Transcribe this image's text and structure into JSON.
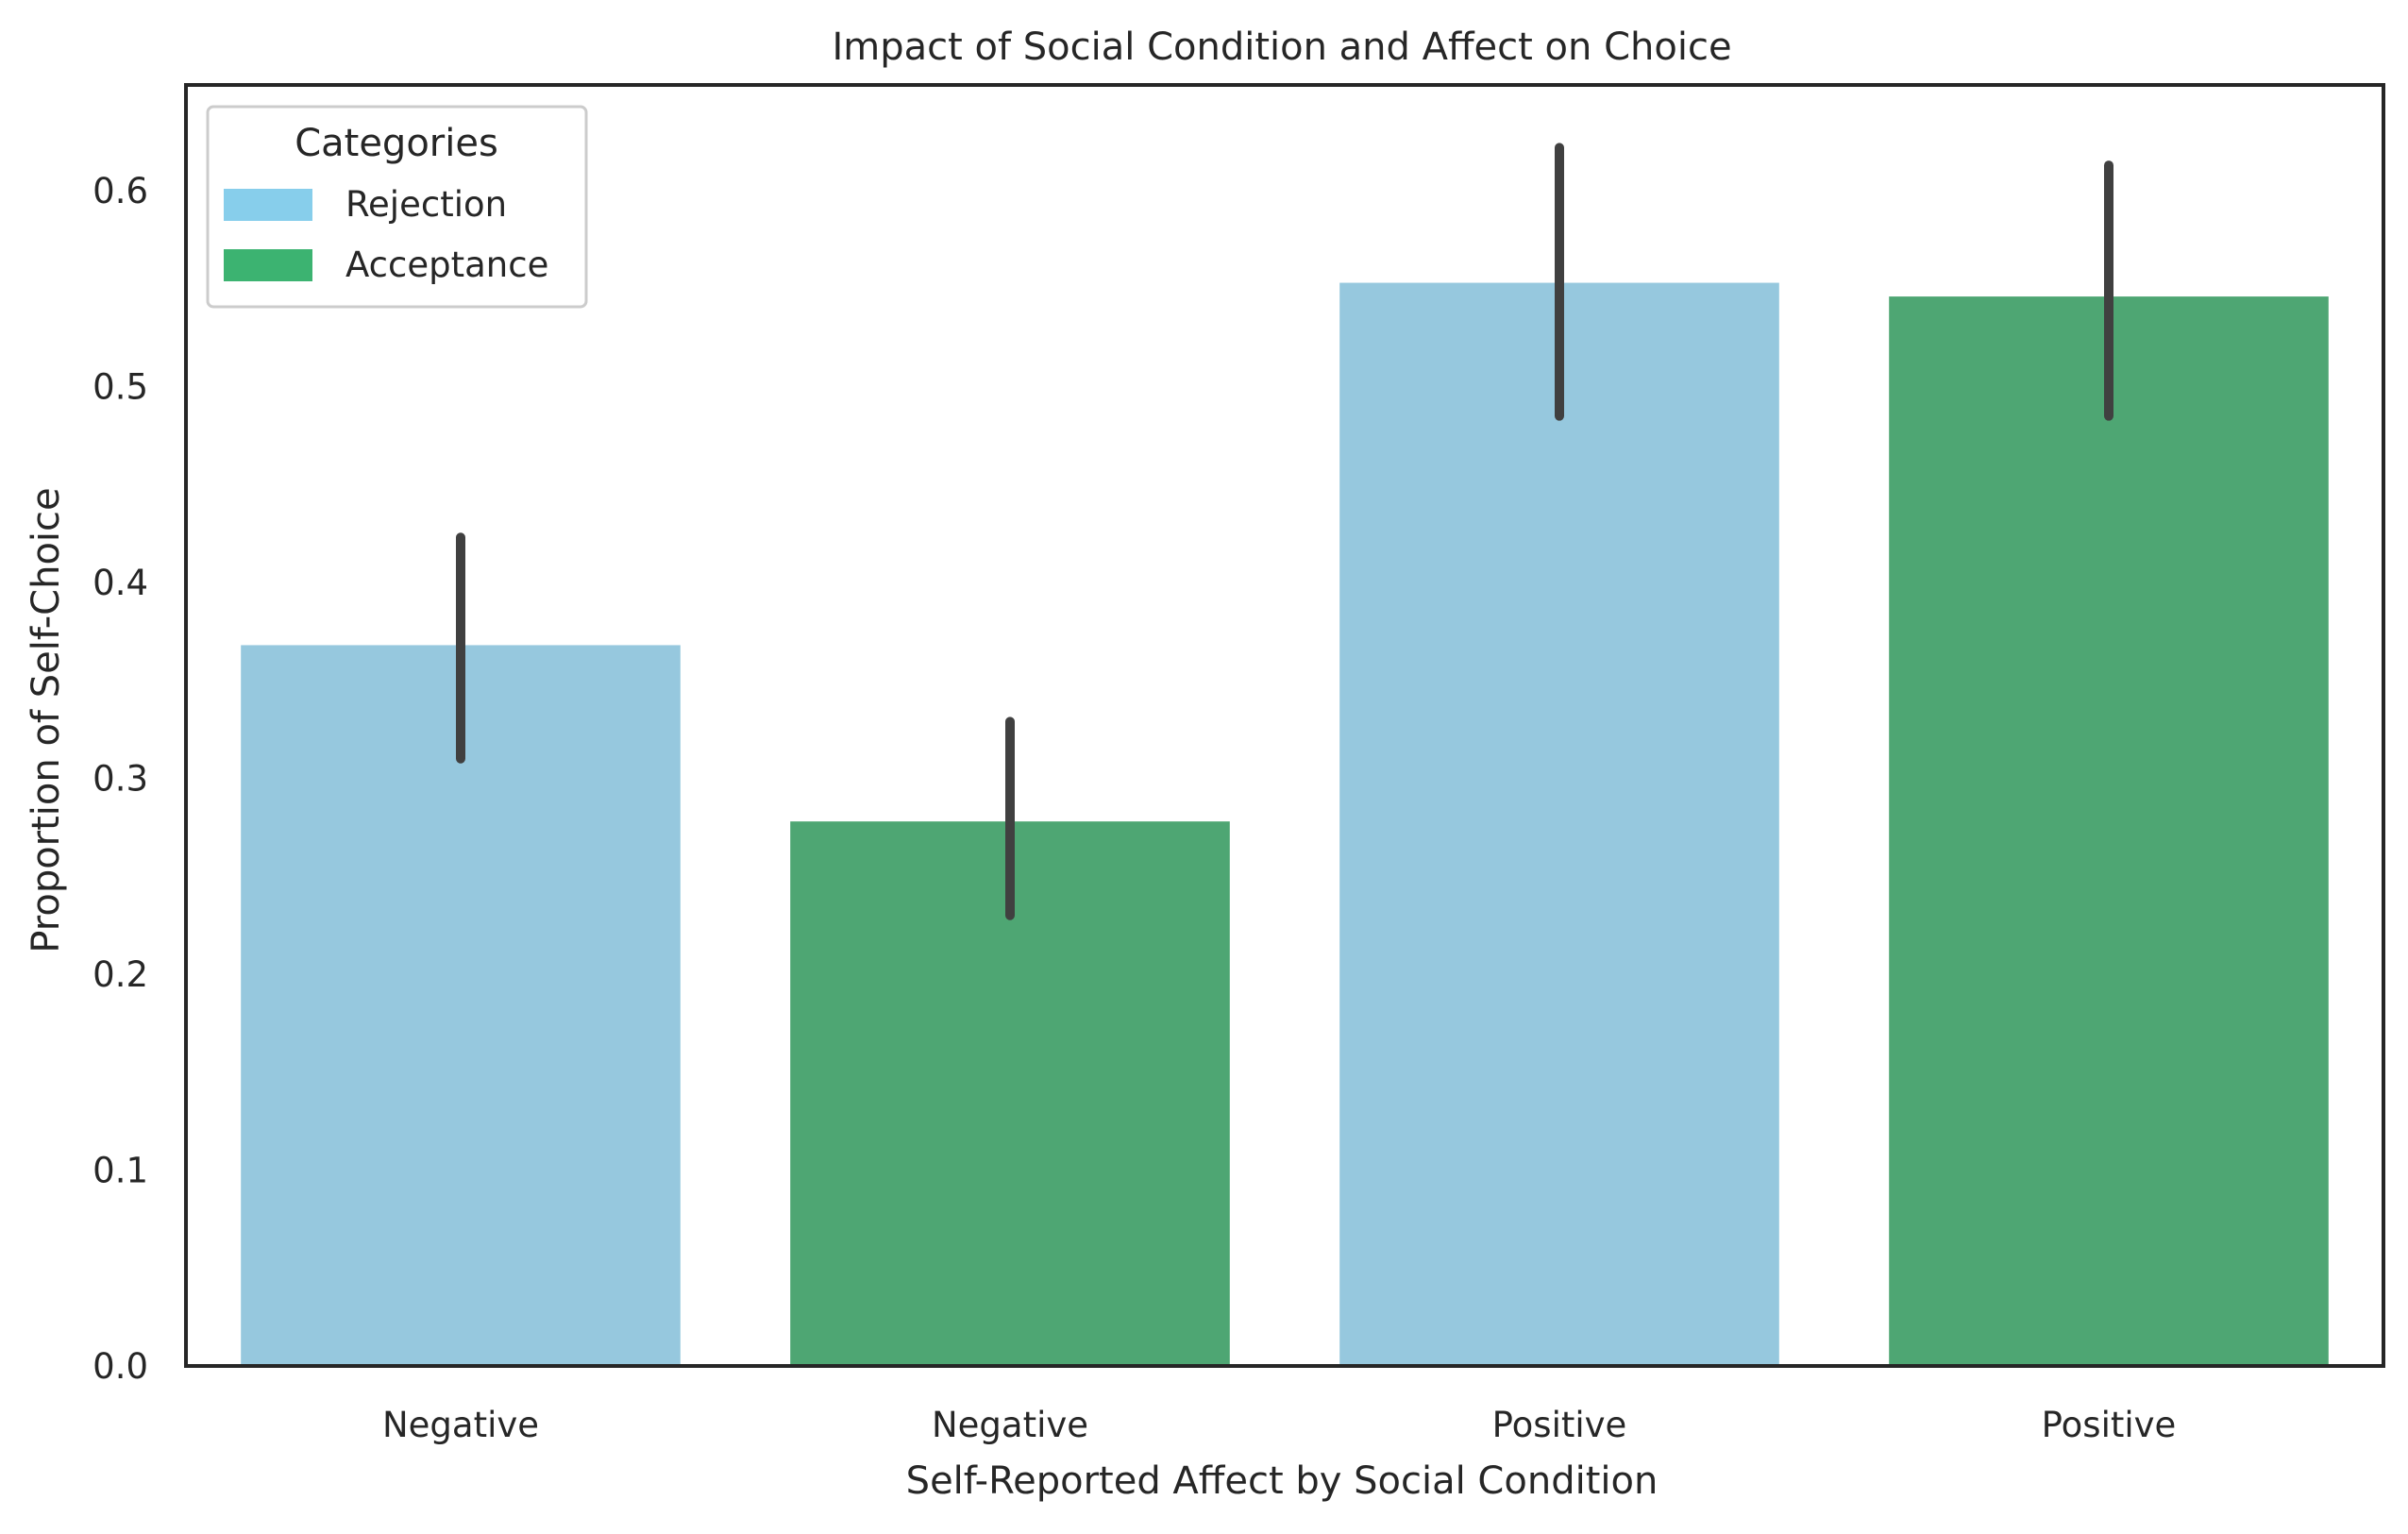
{
  "chart_data": {
    "type": "bar",
    "title": "Impact of Social Condition and Affect on Choice",
    "xlabel": "Self-Reported Affect by Social Condition",
    "ylabel": "Proportion of Self-Choice",
    "ylim": [
      0,
      0.654
    ],
    "yticks": [
      0.0,
      0.1,
      0.2,
      0.3,
      0.4,
      0.5,
      0.6
    ],
    "ytick_labels": [
      "0.0",
      "0.1",
      "0.2",
      "0.3",
      "0.4",
      "0.5",
      "0.6"
    ],
    "categories": [
      "Negative",
      "Negative",
      "Positive",
      "Positive"
    ],
    "values": [
      0.368,
      0.278,
      0.553,
      0.546
    ],
    "error_low": [
      0.31,
      0.23,
      0.485,
      0.485
    ],
    "error_high": [
      0.423,
      0.329,
      0.622,
      0.613
    ],
    "bar_groups": [
      "Rejection",
      "Acceptance",
      "Rejection",
      "Acceptance"
    ],
    "grid": false,
    "legend": {
      "title": "Categories",
      "placement": "top-left",
      "entries": [
        {
          "label": "Rejection",
          "color": "#87ceeb"
        },
        {
          "label": "Acceptance",
          "color": "#3cb371"
        }
      ]
    },
    "colors": {
      "Rejection": "#96c8de",
      "Acceptance": "#4ea673",
      "error_bar": "#404040"
    }
  }
}
